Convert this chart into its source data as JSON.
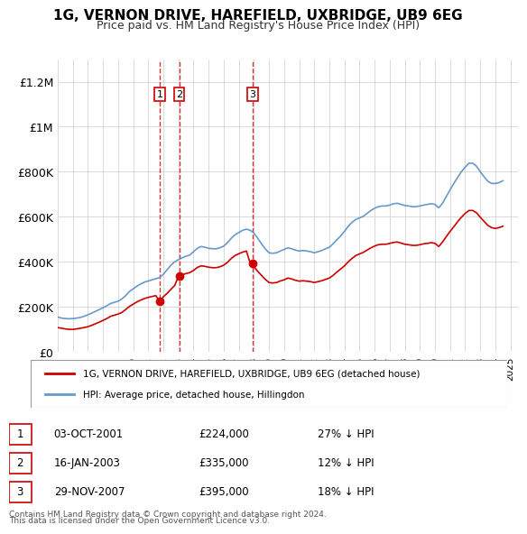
{
  "title": "1G, VERNON DRIVE, HAREFIELD, UXBRIDGE, UB9 6EG",
  "subtitle": "Price paid vs. HM Land Registry's House Price Index (HPI)",
  "ylabel_ticks": [
    "£0",
    "£200K",
    "£400K",
    "£600K",
    "£800K",
    "£1M",
    "£1.2M"
  ],
  "ytick_values": [
    0,
    200000,
    400000,
    600000,
    800000,
    1000000,
    1200000
  ],
  "ylim": [
    0,
    1300000
  ],
  "xlim_start": 1995.0,
  "xlim_end": 2025.5,
  "legend_line1": "1G, VERNON DRIVE, HAREFIELD, UXBRIDGE, UB9 6EG (detached house)",
  "legend_line2": "HPI: Average price, detached house, Hillingdon",
  "line_color_red": "#cc0000",
  "line_color_blue": "#6699cc",
  "vline_color": "#cc0000",
  "transactions": [
    {
      "num": 1,
      "date_x": 2001.75,
      "price": 224000,
      "label": "1",
      "date_str": "03-OCT-2001",
      "price_str": "£224,000",
      "hpi_str": "27% ↓ HPI"
    },
    {
      "num": 2,
      "date_x": 2003.05,
      "price": 335000,
      "label": "2",
      "date_str": "16-JAN-2003",
      "price_str": "£335,000",
      "hpi_str": "12% ↓ HPI"
    },
    {
      "num": 3,
      "date_x": 2007.92,
      "price": 395000,
      "label": "3",
      "date_str": "29-NOV-2007",
      "price_str": "£395,000",
      "hpi_str": "18% ↓ HPI"
    }
  ],
  "footer_line1": "Contains HM Land Registry data © Crown copyright and database right 2024.",
  "footer_line2": "This data is licensed under the Open Government Licence v3.0.",
  "hpi_data_x": [
    1995.0,
    1995.25,
    1995.5,
    1995.75,
    1996.0,
    1996.25,
    1996.5,
    1996.75,
    1997.0,
    1997.25,
    1997.5,
    1997.75,
    1998.0,
    1998.25,
    1998.5,
    1998.75,
    1999.0,
    1999.25,
    1999.5,
    1999.75,
    2000.0,
    2000.25,
    2000.5,
    2000.75,
    2001.0,
    2001.25,
    2001.5,
    2001.75,
    2002.0,
    2002.25,
    2002.5,
    2002.75,
    2003.0,
    2003.25,
    2003.5,
    2003.75,
    2004.0,
    2004.25,
    2004.5,
    2004.75,
    2005.0,
    2005.25,
    2005.5,
    2005.75,
    2006.0,
    2006.25,
    2006.5,
    2006.75,
    2007.0,
    2007.25,
    2007.5,
    2007.75,
    2008.0,
    2008.25,
    2008.5,
    2008.75,
    2009.0,
    2009.25,
    2009.5,
    2009.75,
    2010.0,
    2010.25,
    2010.5,
    2010.75,
    2011.0,
    2011.25,
    2011.5,
    2011.75,
    2012.0,
    2012.25,
    2012.5,
    2012.75,
    2013.0,
    2013.25,
    2013.5,
    2013.75,
    2014.0,
    2014.25,
    2014.5,
    2014.75,
    2015.0,
    2015.25,
    2015.5,
    2015.75,
    2016.0,
    2016.25,
    2016.5,
    2016.75,
    2017.0,
    2017.25,
    2017.5,
    2017.75,
    2018.0,
    2018.25,
    2018.5,
    2018.75,
    2019.0,
    2019.25,
    2019.5,
    2019.75,
    2020.0,
    2020.25,
    2020.5,
    2020.75,
    2021.0,
    2021.25,
    2021.5,
    2021.75,
    2022.0,
    2022.25,
    2022.5,
    2022.75,
    2023.0,
    2023.25,
    2023.5,
    2023.75,
    2024.0,
    2024.25,
    2024.5
  ],
  "hpi_data_y": [
    155000,
    150000,
    148000,
    147000,
    148000,
    150000,
    153000,
    158000,
    165000,
    172000,
    180000,
    188000,
    196000,
    205000,
    215000,
    220000,
    225000,
    235000,
    250000,
    268000,
    280000,
    292000,
    302000,
    310000,
    315000,
    320000,
    325000,
    330000,
    345000,
    365000,
    385000,
    400000,
    410000,
    418000,
    425000,
    430000,
    445000,
    460000,
    468000,
    465000,
    460000,
    458000,
    458000,
    462000,
    470000,
    485000,
    505000,
    520000,
    530000,
    540000,
    545000,
    540000,
    528000,
    505000,
    480000,
    458000,
    440000,
    438000,
    440000,
    448000,
    455000,
    462000,
    458000,
    452000,
    448000,
    450000,
    448000,
    445000,
    440000,
    445000,
    450000,
    458000,
    465000,
    480000,
    498000,
    515000,
    535000,
    558000,
    575000,
    588000,
    595000,
    602000,
    615000,
    628000,
    638000,
    645000,
    648000,
    648000,
    652000,
    658000,
    660000,
    655000,
    650000,
    648000,
    645000,
    645000,
    648000,
    652000,
    655000,
    658000,
    655000,
    640000,
    660000,
    690000,
    720000,
    748000,
    775000,
    800000,
    820000,
    838000,
    838000,
    825000,
    800000,
    778000,
    758000,
    748000,
    748000,
    752000,
    760000
  ],
  "price_paid_x": [
    1995.0,
    1995.25,
    1995.5,
    1995.75,
    1996.0,
    1996.25,
    1996.5,
    1996.75,
    1997.0,
    1997.25,
    1997.5,
    1997.75,
    1998.0,
    1998.25,
    1998.5,
    1998.75,
    1999.0,
    1999.25,
    1999.5,
    1999.75,
    2000.0,
    2000.25,
    2000.5,
    2000.75,
    2001.0,
    2001.25,
    2001.5,
    2001.75,
    2002.0,
    2002.25,
    2002.5,
    2002.75,
    2003.0,
    2003.25,
    2003.5,
    2003.75,
    2004.0,
    2004.25,
    2004.5,
    2004.75,
    2005.0,
    2005.25,
    2005.5,
    2005.75,
    2006.0,
    2006.25,
    2006.5,
    2006.75,
    2007.0,
    2007.25,
    2007.5,
    2007.75,
    2008.0,
    2008.25,
    2008.5,
    2008.75,
    2009.0,
    2009.25,
    2009.5,
    2009.75,
    2010.0,
    2010.25,
    2010.5,
    2010.75,
    2011.0,
    2011.25,
    2011.5,
    2011.75,
    2012.0,
    2012.25,
    2012.5,
    2012.75,
    2013.0,
    2013.25,
    2013.5,
    2013.75,
    2014.0,
    2014.25,
    2014.5,
    2014.75,
    2015.0,
    2015.25,
    2015.5,
    2015.75,
    2016.0,
    2016.25,
    2016.5,
    2016.75,
    2017.0,
    2017.25,
    2017.5,
    2017.75,
    2018.0,
    2018.25,
    2018.5,
    2018.75,
    2019.0,
    2019.25,
    2019.5,
    2019.75,
    2020.0,
    2020.25,
    2020.5,
    2020.75,
    2021.0,
    2021.25,
    2021.5,
    2021.75,
    2022.0,
    2022.25,
    2022.5,
    2022.75,
    2023.0,
    2023.25,
    2023.5,
    2023.75,
    2024.0,
    2024.25,
    2024.5
  ],
  "price_paid_y": [
    108000,
    105000,
    102000,
    100000,
    100000,
    102000,
    105000,
    108000,
    112000,
    118000,
    125000,
    132000,
    140000,
    148000,
    158000,
    163000,
    168000,
    175000,
    188000,
    202000,
    212000,
    222000,
    230000,
    237000,
    242000,
    246000,
    250000,
    224000,
    245000,
    260000,
    278000,
    295000,
    335000,
    342000,
    348000,
    352000,
    362000,
    375000,
    382000,
    380000,
    376000,
    374000,
    374000,
    378000,
    385000,
    398000,
    415000,
    428000,
    436000,
    443000,
    448000,
    395000,
    378000,
    358000,
    340000,
    322000,
    308000,
    306000,
    308000,
    315000,
    320000,
    328000,
    324000,
    318000,
    314000,
    316000,
    314000,
    312000,
    308000,
    312000,
    316000,
    322000,
    328000,
    340000,
    355000,
    368000,
    382000,
    400000,
    415000,
    428000,
    435000,
    442000,
    452000,
    462000,
    470000,
    476000,
    478000,
    478000,
    482000,
    486000,
    488000,
    483000,
    478000,
    476000,
    473000,
    473000,
    476000,
    480000,
    482000,
    485000,
    482000,
    468000,
    488000,
    512000,
    535000,
    556000,
    578000,
    598000,
    615000,
    628000,
    628000,
    618000,
    598000,
    580000,
    562000,
    552000,
    548000,
    552000,
    558000
  ]
}
